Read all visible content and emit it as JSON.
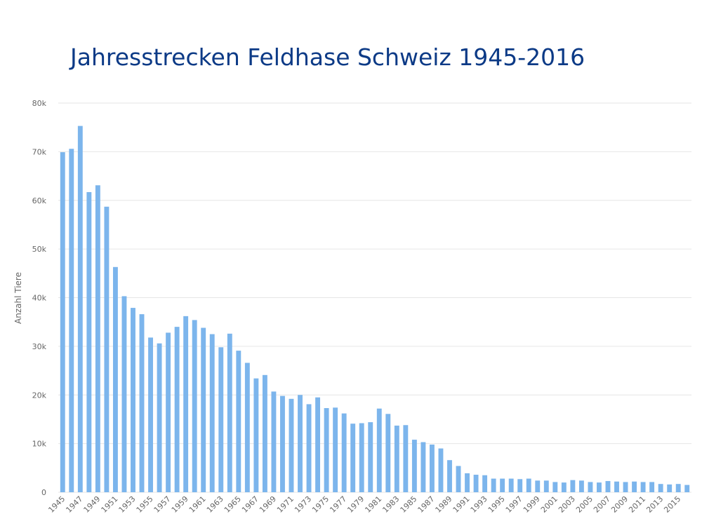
{
  "chart_data": {
    "type": "bar",
    "title": "Jahresstrecken Feldhase Schweiz 1945-2016",
    "xlabel": "",
    "ylabel": "Anzahl Tiere",
    "ylim": [
      0,
      80000
    ],
    "yticks": [
      "0",
      "10k",
      "20k",
      "30k",
      "40k",
      "50k",
      "60k",
      "70k",
      "80k"
    ],
    "grid": true,
    "bar_color": "#7cb5ec",
    "title_color": "#0c3a86",
    "categories": [
      1945,
      1946,
      1947,
      1948,
      1949,
      1950,
      1951,
      1952,
      1953,
      1954,
      1955,
      1956,
      1957,
      1958,
      1959,
      1960,
      1961,
      1962,
      1963,
      1964,
      1965,
      1966,
      1967,
      1968,
      1969,
      1970,
      1971,
      1972,
      1973,
      1974,
      1975,
      1976,
      1977,
      1978,
      1979,
      1980,
      1981,
      1982,
      1983,
      1984,
      1985,
      1986,
      1987,
      1988,
      1989,
      1990,
      1991,
      1992,
      1993,
      1994,
      1995,
      1996,
      1997,
      1998,
      1999,
      2000,
      2001,
      2002,
      2003,
      2004,
      2005,
      2006,
      2007,
      2008,
      2009,
      2010,
      2011,
      2012,
      2013,
      2014,
      2015,
      2016
    ],
    "tick_labels": [
      "1945",
      "1947",
      "1949",
      "1951",
      "1953",
      "1955",
      "1957",
      "1959",
      "1961",
      "1963",
      "1965",
      "1967",
      "1969",
      "1971",
      "1973",
      "1975",
      "1977",
      "1979",
      "1981",
      "1983",
      "1985",
      "1987",
      "1989",
      "1991",
      "1993",
      "1995",
      "1997",
      "1999",
      "2001",
      "2003",
      "2005",
      "2007",
      "2009",
      "2011",
      "2013",
      "2015"
    ],
    "values": [
      69900,
      70600,
      75300,
      61700,
      63100,
      58700,
      46300,
      40300,
      37900,
      36600,
      31800,
      30600,
      32800,
      34000,
      36200,
      35400,
      33800,
      32500,
      29800,
      32600,
      29100,
      26600,
      23400,
      24100,
      20700,
      19800,
      19200,
      20000,
      18100,
      19500,
      17300,
      17400,
      16200,
      14100,
      14200,
      14400,
      17200,
      16100,
      13700,
      13800,
      10800,
      10300,
      9800,
      9000,
      6600,
      5400,
      3900,
      3600,
      3500,
      2800,
      2800,
      2800,
      2700,
      2800,
      2400,
      2400,
      2100,
      2000,
      2500,
      2400,
      2100,
      2000,
      2300,
      2200,
      2100,
      2200,
      2100,
      2100,
      1700,
      1600,
      1700,
      1500
    ]
  }
}
